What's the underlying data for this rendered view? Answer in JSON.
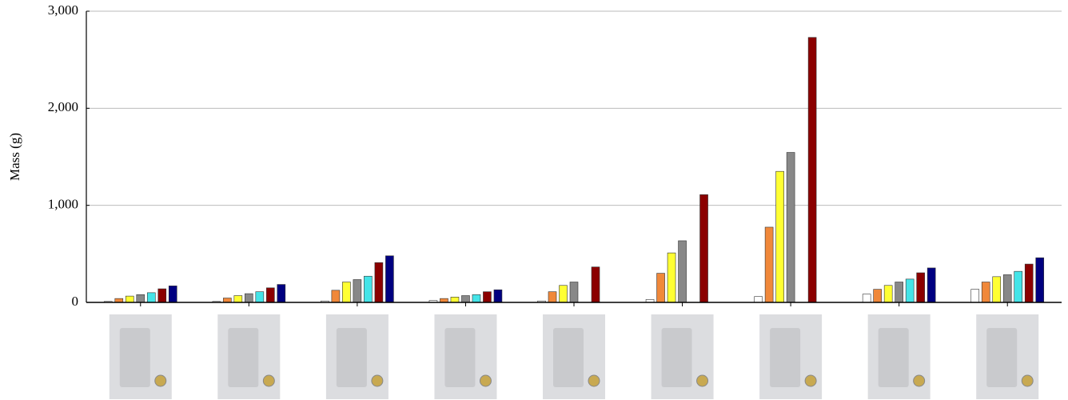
{
  "chart_data": {
    "type": "bar",
    "y_label": "Mass (g)",
    "categories": [
      null,
      null,
      null,
      null,
      null,
      null,
      null,
      null,
      null
    ],
    "series": [
      {
        "color": "#ffffff",
        "values": [
          10,
          10,
          15,
          20,
          15,
          30,
          60,
          85,
          135
        ]
      },
      {
        "color": "#f0883a",
        "values": [
          40,
          45,
          125,
          40,
          110,
          300,
          775,
          135,
          210
        ]
      },
      {
        "color": "#ffff33",
        "values": [
          65,
          70,
          210,
          55,
          175,
          510,
          1350,
          175,
          265
        ]
      },
      {
        "color": "#888888",
        "values": [
          80,
          90,
          235,
          70,
          210,
          635,
          1545,
          210,
          285
        ]
      },
      {
        "color": "#44e4e8",
        "values": [
          100,
          110,
          270,
          80,
          null,
          null,
          null,
          240,
          320
        ]
      },
      {
        "color": "#8b0000",
        "values": [
          140,
          150,
          410,
          110,
          365,
          1110,
          2730,
          305,
          395
        ]
      },
      {
        "color": "#000080",
        "values": [
          170,
          185,
          480,
          130,
          null,
          null,
          null,
          355,
          460
        ]
      }
    ],
    "ylim": [
      0,
      3000
    ],
    "yticks": [
      0,
      {
        "value": 1000,
        "label": "1,000"
      },
      {
        "value": 2000,
        "label": "2,000"
      },
      {
        "value": 3000,
        "label": "3,000"
      }
    ],
    "grid": true
  }
}
